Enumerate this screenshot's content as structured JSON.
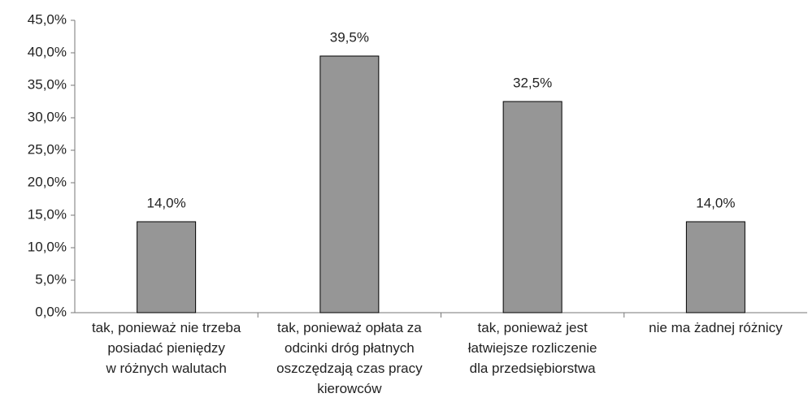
{
  "chart_data": {
    "type": "bar",
    "categories": [
      "tak, ponieważ nie trzeba\nposiadać pieniędzy\nw różnych walutach",
      "tak, ponieważ opłata za\nodcinki dróg płatnych\noszczędzają czas pracy\nkierowców",
      "tak, ponieważ jest\nłatwiejsze rozliczenie\ndla przedsiębiorstwa",
      "nie ma żadnej różnicy"
    ],
    "values": [
      14.0,
      39.5,
      32.5,
      14.0
    ],
    "value_labels": [
      "14,0%",
      "39,5%",
      "32,5%",
      "14,0%"
    ],
    "color": "#969696",
    "ylim": [
      0,
      45
    ],
    "yticks": [
      {
        "value": 0,
        "label": "0,0%"
      },
      {
        "value": 5,
        "label": "5,0%"
      },
      {
        "value": 10,
        "label": "10,0%"
      },
      {
        "value": 15,
        "label": "15,0%"
      },
      {
        "value": 20,
        "label": "20,0%"
      },
      {
        "value": 25,
        "label": "25,0%"
      },
      {
        "value": 30,
        "label": "30,0%"
      },
      {
        "value": 35,
        "label": "35,0%"
      },
      {
        "value": 40,
        "label": "40,0%"
      },
      {
        "value": 45,
        "label": "45,0%"
      }
    ],
    "grid": false
  }
}
